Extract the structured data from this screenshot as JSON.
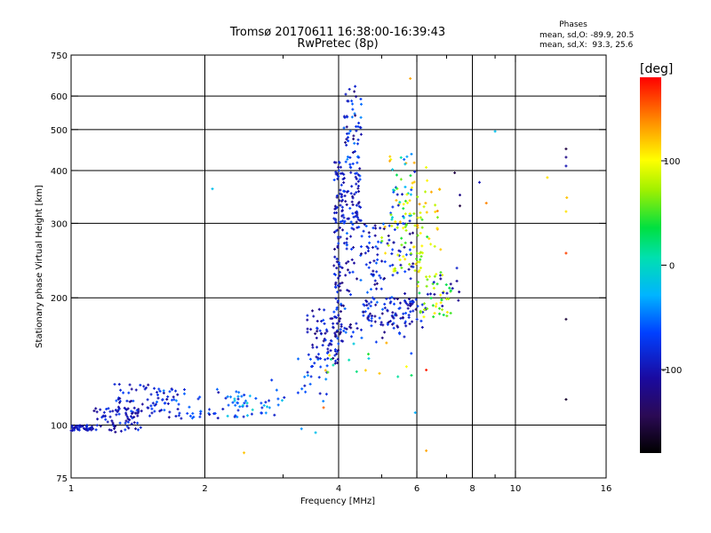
{
  "chart_data": {
    "type": "scatter",
    "title": "Tromsø 20170611 16:38:00-16:39:43",
    "subtitle": "RwPretec (8p)",
    "xlabel": "Frequency [MHz]",
    "ylabel": "Stationary phase Virtual Height [km]",
    "x_scale": "log",
    "y_scale": "log",
    "xlim": [
      1,
      16
    ],
    "ylim": [
      75,
      750
    ],
    "x_ticks": [
      1,
      2,
      4,
      6,
      8,
      10,
      16
    ],
    "x_tick_labels": [
      "1",
      "2",
      "4",
      "6",
      "8",
      "10",
      "16"
    ],
    "x_minor_ticks": [
      3,
      5,
      7,
      9
    ],
    "y_ticks": [
      75,
      100,
      200,
      300,
      400,
      500,
      600,
      750
    ],
    "y_tick_labels": [
      "75",
      "100",
      "200",
      "300",
      "400",
      "500",
      "600",
      "750"
    ],
    "grid_x": [
      2,
      4,
      6,
      8,
      10
    ],
    "grid_y": [
      100,
      200,
      300,
      400,
      500,
      600
    ],
    "phase_info": {
      "heading": "Phases",
      "line_o": "mean, sd,O: -89.9, 20.5",
      "line_x": "mean, sd,X:  93.3, 25.6"
    },
    "colorbar": {
      "label": "[deg]",
      "range": [
        -180,
        180
      ],
      "ticks": [
        100,
        0,
        -100
      ],
      "tick_labels": [
        "100",
        "0",
        "-100"
      ]
    },
    "clusters": [
      {
        "f": [
          1.0,
          1.12
        ],
        "h": [
          97,
          100
        ],
        "n": 40,
        "ph": [
          -110,
          -80
        ]
      },
      {
        "f": [
          1.12,
          1.45
        ],
        "h": [
          96,
          110
        ],
        "n": 70,
        "ph": [
          -120,
          -70
        ]
      },
      {
        "f": [
          1.25,
          1.75
        ],
        "h": [
          106,
          125
        ],
        "n": 60,
        "ph": [
          -120,
          -60
        ]
      },
      {
        "f": [
          1.5,
          2.5
        ],
        "h": [
          103,
          122
        ],
        "n": 60,
        "ph": [
          -110,
          -40
        ]
      },
      {
        "f": [
          2.2,
          3.0
        ],
        "h": [
          105,
          120
        ],
        "n": 30,
        "ph": [
          -90,
          0
        ]
      },
      {
        "f": [
          2.8,
          3.8
        ],
        "h": [
          112,
          145
        ],
        "n": 25,
        "ph": [
          -110,
          -40
        ]
      },
      {
        "f": [
          3.4,
          4.0
        ],
        "h": [
          140,
          190
        ],
        "n": 70,
        "ph": [
          -130,
          -60
        ]
      },
      {
        "f": [
          3.9,
          4.1
        ],
        "h": [
          150,
          420
        ],
        "n": 90,
        "ph": [
          -130,
          -60
        ]
      },
      {
        "f": [
          4.0,
          4.5
        ],
        "h": [
          300,
          420
        ],
        "n": 80,
        "ph": [
          -120,
          -60
        ]
      },
      {
        "f": [
          4.1,
          4.5
        ],
        "h": [
          420,
          640
        ],
        "n": 50,
        "ph": [
          -130,
          -40
        ]
      },
      {
        "f": [
          4.1,
          5.9
        ],
        "h": [
          160,
          300
        ],
        "n": 170,
        "ph": [
          -130,
          -50
        ]
      },
      {
        "f": [
          4.5,
          6.3
        ],
        "h": [
          170,
          200
        ],
        "n": 70,
        "ph": [
          -130,
          -60
        ]
      },
      {
        "f": [
          5.0,
          6.2
        ],
        "h": [
          230,
          300
        ],
        "n": 45,
        "ph": [
          40,
          130
        ]
      },
      {
        "f": [
          5.2,
          6.0
        ],
        "h": [
          300,
          440
        ],
        "n": 55,
        "ph": [
          -100,
          130
        ]
      },
      {
        "f": [
          6.0,
          6.8
        ],
        "h": [
          250,
          420
        ],
        "n": 30,
        "ph": [
          40,
          140
        ]
      },
      {
        "f": [
          6.0,
          7.2
        ],
        "h": [
          180,
          230
        ],
        "n": 45,
        "ph": [
          30,
          110
        ]
      },
      {
        "f": [
          6.3,
          7.5
        ],
        "h": [
          190,
          240
        ],
        "n": 15,
        "ph": [
          -120,
          -80
        ]
      },
      {
        "f": [
          3.6,
          6.0
        ],
        "h": [
          130,
          160
        ],
        "n": 20,
        "ph": [
          -80,
          130
        ]
      }
    ],
    "isolated_points": [
      {
        "x": 2.08,
        "y": 362,
        "phase": -20
      },
      {
        "x": 2.45,
        "y": 86,
        "phase": 120
      },
      {
        "x": 3.3,
        "y": 98,
        "phase": -40
      },
      {
        "x": 3.55,
        "y": 96,
        "phase": -20
      },
      {
        "x": 3.7,
        "y": 110,
        "phase": 150
      },
      {
        "x": 5.8,
        "y": 660,
        "phase": 130
      },
      {
        "x": 6.3,
        "y": 87,
        "phase": 130
      },
      {
        "x": 6.3,
        "y": 135,
        "phase": 170
      },
      {
        "x": 5.95,
        "y": 107,
        "phase": -30
      },
      {
        "x": 7.3,
        "y": 395,
        "phase": -150
      },
      {
        "x": 7.5,
        "y": 330,
        "phase": -150
      },
      {
        "x": 7.5,
        "y": 350,
        "phase": -120
      },
      {
        "x": 8.3,
        "y": 375,
        "phase": -100
      },
      {
        "x": 8.6,
        "y": 335,
        "phase": 140
      },
      {
        "x": 9.0,
        "y": 495,
        "phase": -20
      },
      {
        "x": 11.8,
        "y": 385,
        "phase": 110
      },
      {
        "x": 13.0,
        "y": 450,
        "phase": -150
      },
      {
        "x": 13.0,
        "y": 430,
        "phase": -120
      },
      {
        "x": 13.0,
        "y": 410,
        "phase": -100
      },
      {
        "x": 13.05,
        "y": 345,
        "phase": 120
      },
      {
        "x": 13.0,
        "y": 320,
        "phase": 110
      },
      {
        "x": 13.0,
        "y": 255,
        "phase": 160
      },
      {
        "x": 13.0,
        "y": 178,
        "phase": -155
      },
      {
        "x": 13.0,
        "y": 115,
        "phase": -160
      }
    ]
  }
}
